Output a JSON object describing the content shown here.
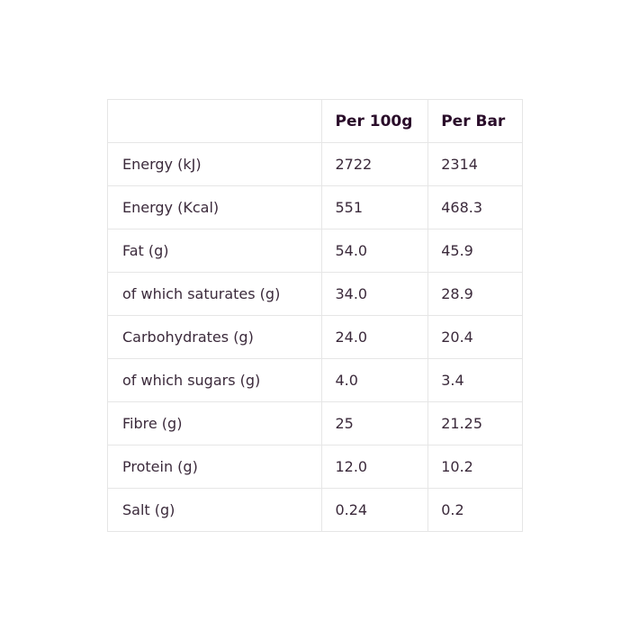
{
  "table": {
    "headers": [
      "",
      "Per 100g",
      "Per Bar"
    ],
    "rows": [
      [
        "Energy (kJ)",
        "2722",
        "2314"
      ],
      [
        "Energy (Kcal)",
        "551",
        "468.3"
      ],
      [
        "Fat (g)",
        "54.0",
        "45.9"
      ],
      [
        "of which saturates (g)",
        "34.0",
        "28.9"
      ],
      [
        "Carbohydrates (g)",
        "24.0",
        "20.4"
      ],
      [
        "of which sugars (g)",
        "4.0",
        "3.4"
      ],
      [
        "Fibre (g)",
        "25",
        "21.25"
      ],
      [
        "Protein (g)",
        "12.0",
        "10.2"
      ],
      [
        "Salt (g)",
        "0.24",
        "0.2"
      ]
    ]
  }
}
